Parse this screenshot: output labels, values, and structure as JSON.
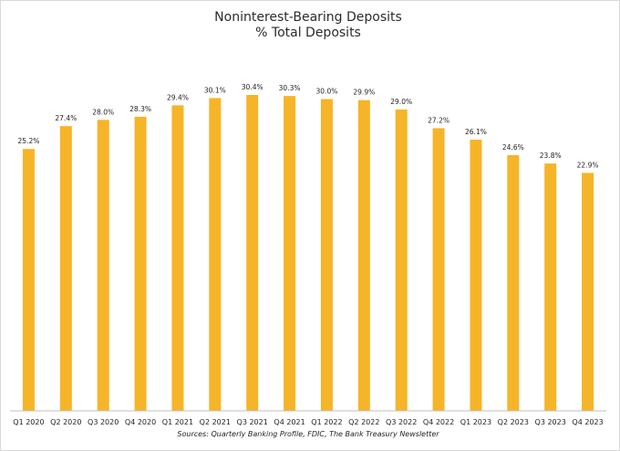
{
  "chart_data": {
    "type": "bar",
    "title": "Noninterest-Bearing Deposits",
    "subtitle": "% Total Deposits",
    "categories": [
      "Q1 2020",
      "Q2 2020",
      "Q3 2020",
      "Q4 2020",
      "Q1 2021",
      "Q2 2021",
      "Q3 2021",
      "Q4 2021",
      "Q1 2022",
      "Q2 2022",
      "Q3 2022",
      "Q4 2022",
      "Q1 2023",
      "Q2 2023",
      "Q3 2023",
      "Q4 2023"
    ],
    "values": [
      25.2,
      27.4,
      28.0,
      28.3,
      29.4,
      30.1,
      30.4,
      30.3,
      30.0,
      29.9,
      29.0,
      27.2,
      26.1,
      24.6,
      23.8,
      22.9
    ],
    "data_labels": [
      "25.2%",
      "27.4%",
      "28.0%",
      "28.3%",
      "29.4%",
      "30.1%",
      "30.4%",
      "30.3%",
      "30.0%",
      "29.9%",
      "29.0%",
      "27.2%",
      "26.1%",
      "24.6%",
      "23.8%",
      "22.9%"
    ],
    "xlabel": "",
    "ylabel": "",
    "ylim": [
      0,
      30.4
    ],
    "grid": false,
    "legend": "none",
    "bar_color": "#F6B428",
    "source": "Sources: Quarterly Banking Profile, FDIC, The Bank Treasury Newsletter"
  }
}
